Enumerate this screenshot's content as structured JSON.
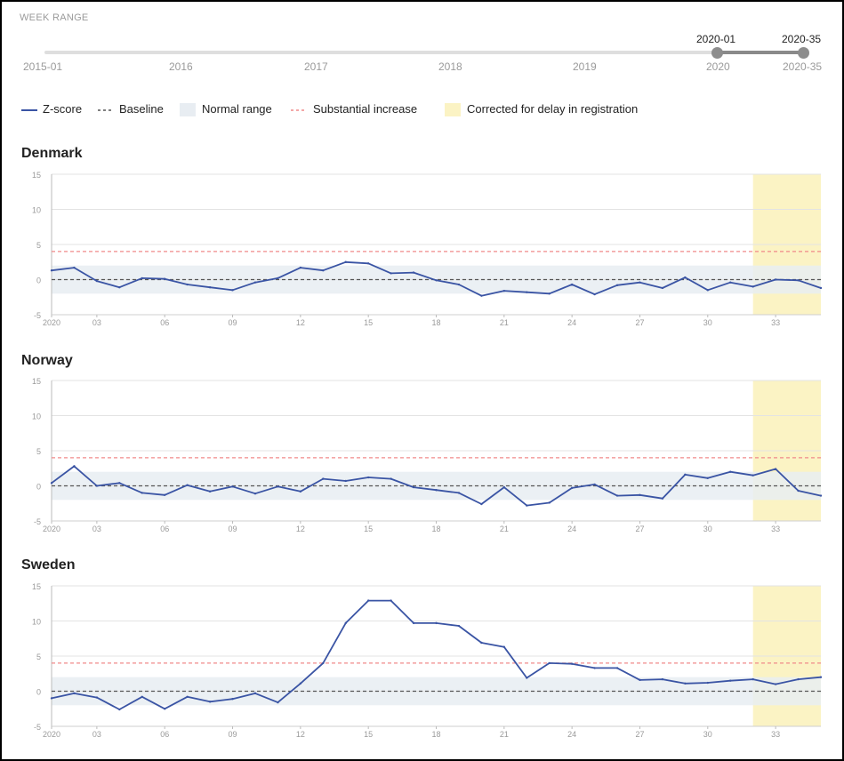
{
  "week_range": {
    "label": "WEEK RANGE",
    "start_label": "2015-01",
    "end_label": "2020-35",
    "selected_start": "2020-01",
    "selected_end": "2020-35",
    "year_ticks": [
      "2016",
      "2017",
      "2018",
      "2019",
      "2020"
    ]
  },
  "legend": {
    "zscore": "Z-score",
    "baseline": "Baseline",
    "normal_range": "Normal range",
    "substantial_increase": "Substantial increase",
    "corrected": "Corrected for delay in registration"
  },
  "colors": {
    "zscore": "#3a54a4",
    "baseline": "#555555",
    "normal_range": "#e8edf2",
    "substantial_increase": "#f08a8a",
    "corrected": "#fbf3c4"
  },
  "chart_data": [
    {
      "type": "line",
      "title": "Denmark",
      "xlabel": "",
      "ylabel": "",
      "x_range": [
        1,
        35
      ],
      "ylim": [
        -5,
        15
      ],
      "y_ticks": [
        -5,
        0,
        5,
        10,
        15
      ],
      "x_ticks": [
        {
          "week": 1,
          "label": "2020"
        },
        {
          "week": 3,
          "label": "03"
        },
        {
          "week": 6,
          "label": "06"
        },
        {
          "week": 9,
          "label": "09"
        },
        {
          "week": 12,
          "label": "12"
        },
        {
          "week": 15,
          "label": "15"
        },
        {
          "week": 18,
          "label": "18"
        },
        {
          "week": 21,
          "label": "21"
        },
        {
          "week": 24,
          "label": "24"
        },
        {
          "week": 27,
          "label": "27"
        },
        {
          "week": 30,
          "label": "30"
        },
        {
          "week": 33,
          "label": "33"
        }
      ],
      "baseline": 0,
      "normal_range": [
        -2,
        2
      ],
      "substantial_increase": 4,
      "corrected_from_week": 32,
      "series": [
        {
          "weeks": [
            1,
            2,
            3,
            4,
            5,
            6,
            7,
            8,
            9,
            10,
            11,
            12,
            13,
            14,
            15,
            16,
            17,
            18,
            19,
            20,
            21,
            22,
            23,
            24,
            25,
            26,
            27,
            28,
            29,
            30,
            31,
            32,
            33,
            34,
            35
          ],
          "values": [
            1.3,
            1.7,
            -0.2,
            -1.1,
            0.2,
            0.1,
            -0.7,
            -1.1,
            -1.5,
            -0.4,
            0.2,
            1.7,
            1.3,
            2.5,
            2.3,
            0.9,
            1.0,
            -0.1,
            -0.7,
            -2.3,
            -1.6,
            -1.8,
            -2.0,
            -0.7,
            -2.1,
            -0.8,
            -0.4,
            -1.2,
            0.3,
            -1.5,
            -0.4,
            -1.0,
            0.0,
            -0.1,
            -1.2
          ]
        }
      ]
    },
    {
      "type": "line",
      "title": "Norway",
      "xlabel": "",
      "ylabel": "",
      "x_range": [
        1,
        35
      ],
      "ylim": [
        -5,
        15
      ],
      "y_ticks": [
        -5,
        0,
        5,
        10,
        15
      ],
      "x_ticks": [
        {
          "week": 1,
          "label": "2020"
        },
        {
          "week": 3,
          "label": "03"
        },
        {
          "week": 6,
          "label": "06"
        },
        {
          "week": 9,
          "label": "09"
        },
        {
          "week": 12,
          "label": "12"
        },
        {
          "week": 15,
          "label": "15"
        },
        {
          "week": 18,
          "label": "18"
        },
        {
          "week": 21,
          "label": "21"
        },
        {
          "week": 24,
          "label": "24"
        },
        {
          "week": 27,
          "label": "27"
        },
        {
          "week": 30,
          "label": "30"
        },
        {
          "week": 33,
          "label": "33"
        }
      ],
      "baseline": 0,
      "normal_range": [
        -2,
        2
      ],
      "substantial_increase": 4,
      "corrected_from_week": 32,
      "series": [
        {
          "weeks": [
            1,
            2,
            3,
            4,
            5,
            6,
            7,
            8,
            9,
            10,
            11,
            12,
            13,
            14,
            15,
            16,
            17,
            18,
            19,
            20,
            21,
            22,
            23,
            24,
            25,
            26,
            27,
            28,
            29,
            30,
            31,
            32,
            33,
            34,
            35
          ],
          "values": [
            0.4,
            2.8,
            0.0,
            0.4,
            -1.0,
            -1.3,
            0.1,
            -0.8,
            -0.1,
            -1.1,
            -0.1,
            -0.8,
            1.0,
            0.7,
            1.2,
            1.0,
            -0.2,
            -0.6,
            -1.0,
            -2.6,
            -0.2,
            -2.8,
            -2.4,
            -0.3,
            0.2,
            -1.4,
            -1.3,
            -1.8,
            1.6,
            1.1,
            2.0,
            1.5,
            2.4,
            -0.7,
            -1.4
          ]
        }
      ]
    },
    {
      "type": "line",
      "title": "Sweden",
      "xlabel": "",
      "ylabel": "",
      "x_range": [
        1,
        35
      ],
      "ylim": [
        -5,
        15
      ],
      "y_ticks": [
        -5,
        0,
        5,
        10,
        15
      ],
      "x_ticks": [
        {
          "week": 1,
          "label": "2020"
        },
        {
          "week": 3,
          "label": "03"
        },
        {
          "week": 6,
          "label": "06"
        },
        {
          "week": 9,
          "label": "09"
        },
        {
          "week": 12,
          "label": "12"
        },
        {
          "week": 15,
          "label": "15"
        },
        {
          "week": 18,
          "label": "18"
        },
        {
          "week": 21,
          "label": "21"
        },
        {
          "week": 24,
          "label": "24"
        },
        {
          "week": 27,
          "label": "27"
        },
        {
          "week": 30,
          "label": "30"
        },
        {
          "week": 33,
          "label": "33"
        }
      ],
      "baseline": 0,
      "normal_range": [
        -2,
        2
      ],
      "substantial_increase": 4,
      "corrected_from_week": 32,
      "series": [
        {
          "weeks": [
            1,
            2,
            3,
            4,
            5,
            6,
            7,
            8,
            9,
            10,
            11,
            12,
            13,
            14,
            15,
            16,
            17,
            18,
            19,
            20,
            21,
            22,
            23,
            24,
            25,
            26,
            27,
            28,
            29,
            30,
            31,
            32,
            33,
            34,
            35
          ],
          "values": [
            -1.0,
            -0.3,
            -0.9,
            -2.6,
            -0.8,
            -2.5,
            -0.8,
            -1.5,
            -1.1,
            -0.3,
            -1.6,
            1.1,
            4.0,
            9.7,
            12.9,
            12.9,
            9.7,
            9.7,
            9.3,
            6.9,
            6.3,
            1.9,
            4.0,
            3.9,
            3.3,
            3.3,
            1.6,
            1.7,
            1.1,
            1.2,
            1.5,
            1.7,
            1.0,
            1.7,
            2.0
          ]
        }
      ]
    }
  ]
}
